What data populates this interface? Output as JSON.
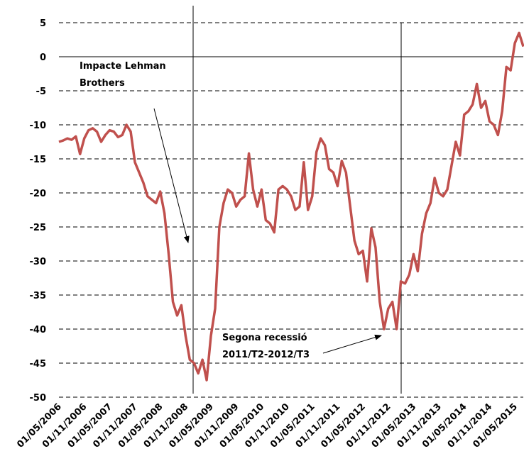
{
  "chart_data": {
    "type": "line",
    "categories": [
      "01/05/2006",
      null,
      null,
      null,
      null,
      null,
      "01/11/2006",
      null,
      null,
      null,
      null,
      null,
      "01/05/2007",
      null,
      null,
      null,
      null,
      null,
      "01/11/2007",
      null,
      null,
      null,
      null,
      null,
      "01/05/2008",
      null,
      null,
      null,
      null,
      null,
      "01/11/2008",
      null,
      null,
      null,
      null,
      null,
      "01/05/2009",
      null,
      null,
      null,
      null,
      null,
      "01/11/2009",
      null,
      null,
      null,
      null,
      null,
      "01/05/2010",
      null,
      null,
      null,
      null,
      null,
      "01/11/2010",
      null,
      null,
      null,
      null,
      null,
      "01/05/2011",
      null,
      null,
      null,
      null,
      null,
      "01/11/2011",
      null,
      null,
      null,
      null,
      null,
      "01/05/2012",
      null,
      null,
      null,
      null,
      null,
      "01/11/2012",
      null,
      null,
      null,
      null,
      null,
      "01/05/2013",
      null,
      null,
      null,
      null,
      null,
      "01/11/2013",
      null,
      null,
      null,
      null,
      null,
      "01/05/2014",
      null,
      null,
      null,
      null,
      null,
      "01/11/2014",
      null,
      null,
      null,
      null,
      null,
      "01/05/2015",
      null,
      null
    ],
    "series": [
      {
        "color": "#c0504d",
        "values": [
          -12.5,
          -12.3,
          -12,
          -12.2,
          -11.7,
          -14.3,
          -12,
          -10.8,
          -10.5,
          -11,
          -12.5,
          -11.5,
          -10.8,
          -11,
          -11.8,
          -11.5,
          -10,
          -11,
          -15.5,
          -17,
          -18.5,
          -20.5,
          -21,
          -21.5,
          -19.8,
          -23,
          -29,
          -36,
          -38,
          -36.5,
          -41,
          -44.5,
          -45,
          -46.5,
          -44.5,
          -47.5,
          -41,
          -37,
          -25,
          -21.5,
          -19.5,
          -20,
          -22,
          -21,
          -20.5,
          -14.2,
          -19.5,
          -22,
          -19.5,
          -24,
          -24.5,
          -25.8,
          -19.5,
          -19,
          -19.5,
          -20.5,
          -22.5,
          -22,
          -15.5,
          -22.5,
          -20.5,
          -14,
          -12,
          -13,
          -16.5,
          -17,
          -19,
          -15.3,
          -17,
          -22,
          -27,
          -29,
          -28.5,
          -33,
          -25.2,
          -28,
          -36,
          -40,
          -37,
          -36,
          -40,
          -33,
          -33.3,
          -32,
          -29,
          -31.5,
          -26,
          -23,
          -21.5,
          -17.8,
          -20,
          -20.5,
          -19.5,
          -16,
          -12.5,
          -14.5,
          -8.5,
          -8,
          -7,
          -4,
          -7.5,
          -6.5,
          -9.5,
          -10,
          -11.5,
          -8,
          -1.5,
          -2,
          2,
          3.5,
          1.5
        ]
      }
    ],
    "ylim": [
      -50,
      5
    ],
    "yticks": [
      5,
      0,
      -5,
      -10,
      -15,
      -20,
      -25,
      -30,
      -35,
      -40,
      -45,
      -50
    ],
    "grid": true,
    "annotations": [
      {
        "text": [
          "Impacte Lehman",
          "Brothers"
        ]
      },
      {
        "text": [
          "Segona recessió",
          "2011/T2-2012/T3"
        ]
      }
    ]
  }
}
